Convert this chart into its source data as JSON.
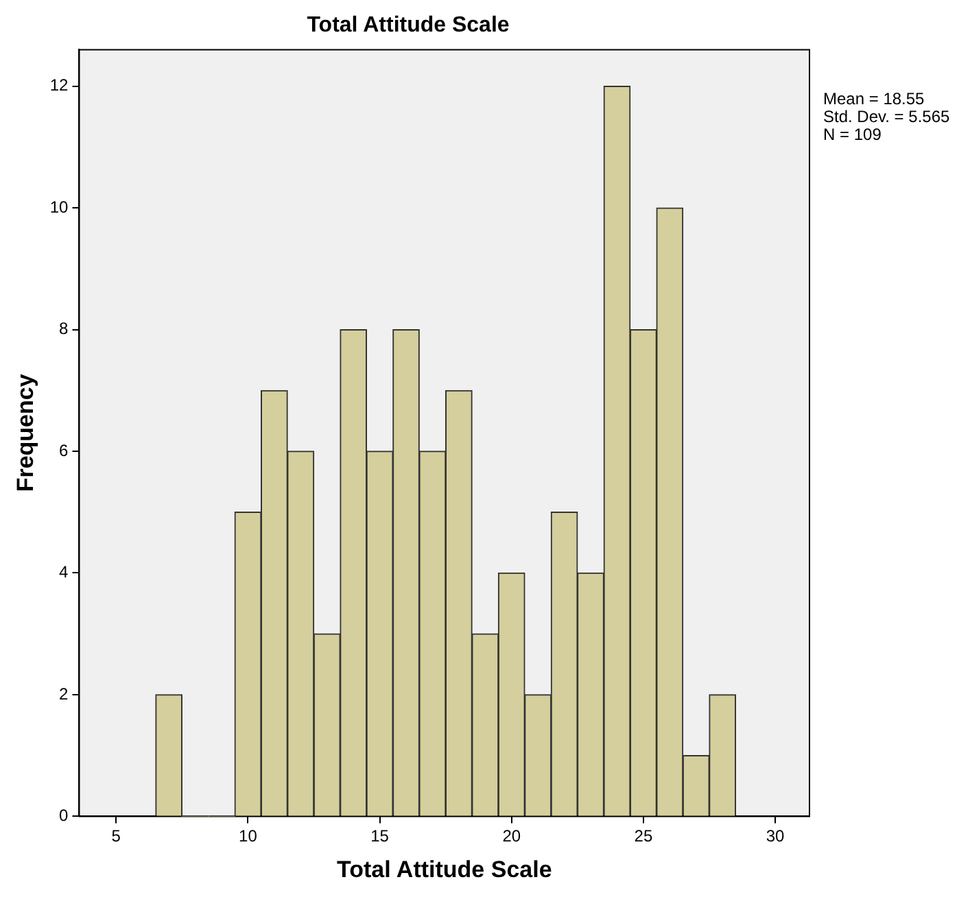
{
  "chart_data": {
    "type": "histogram",
    "title": "Total Attitude Scale",
    "xlabel": "Total Attitude Scale",
    "ylabel": "Frequency",
    "bins": [
      6.5,
      7.5,
      8.5,
      9.5,
      10.5,
      11.5,
      12.5,
      13.5,
      14.5,
      15.5,
      16.5,
      17.5,
      18.5,
      19.5,
      20.5,
      21.5,
      22.5,
      23.5,
      24.5,
      25.5,
      26.5,
      27.5,
      28.5
    ],
    "values": [
      2,
      0,
      0,
      5,
      7,
      6,
      3,
      8,
      6,
      8,
      6,
      7,
      3,
      4,
      2,
      5,
      4,
      12,
      8,
      10,
      1,
      2
    ],
    "color": "#d4cf9c",
    "xlim": [
      3.6,
      31.3
    ],
    "xticks": [
      5,
      10,
      15,
      20,
      25,
      30
    ],
    "ylim": [
      0,
      12.6
    ],
    "yticks": [
      0,
      2,
      4,
      6,
      8,
      10,
      12
    ],
    "grid": false,
    "legend": false,
    "annotations": [
      "Mean = 18.55",
      "Std. Dev. = 5.565",
      "N = 109"
    ]
  }
}
